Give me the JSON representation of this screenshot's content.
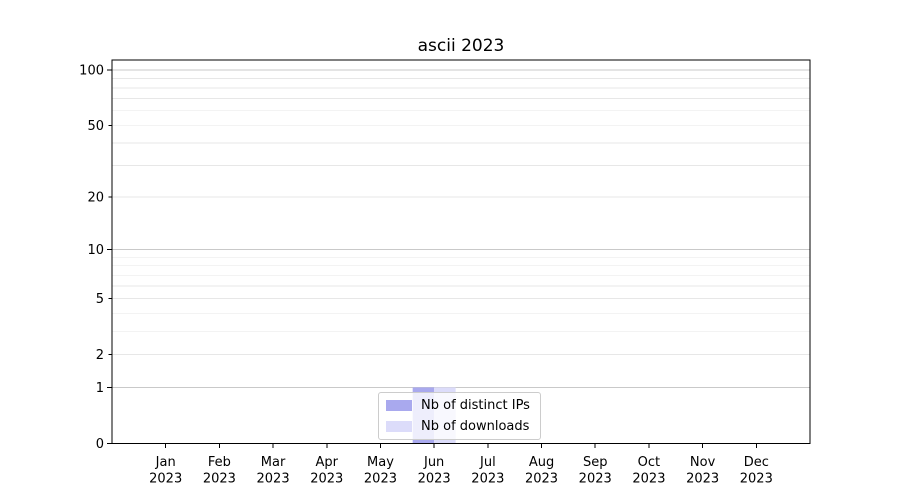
{
  "title": "ascii 2023",
  "chart_data": {
    "type": "bar",
    "categories": [
      "Jan\n2023",
      "Feb\n2023",
      "Mar\n2023",
      "Apr\n2023",
      "May\n2023",
      "Jun\n2023",
      "Jul\n2023",
      "Aug\n2023",
      "Sep\n2023",
      "Oct\n2023",
      "Nov\n2023",
      "Dec\n2023"
    ],
    "series": [
      {
        "name": "Nb of distinct IPs",
        "color": "#a9a9ee",
        "values": [
          0,
          0,
          0,
          0,
          0,
          1,
          0,
          0,
          0,
          0,
          0,
          0
        ]
      },
      {
        "name": "Nb of downloads",
        "color": "#dcdcfa",
        "values": [
          0,
          0,
          0,
          0,
          0,
          1,
          0,
          0,
          0,
          0,
          0,
          0
        ]
      }
    ],
    "title": "ascii 2023",
    "xlabel": "",
    "ylabel": "",
    "yscale": "log1p",
    "ylim": [
      0,
      113
    ],
    "ytick_labels": [
      "0",
      "1",
      "2",
      "5",
      "10",
      "20",
      "50",
      "100"
    ],
    "ytick_values": [
      0,
      1,
      2,
      5,
      10,
      20,
      50,
      100
    ],
    "ytick_major_values": [
      1,
      10,
      100
    ],
    "ytick_minor_unlabeled": [
      3,
      4,
      6,
      7,
      8,
      9,
      30,
      40,
      60,
      70,
      80,
      90
    ],
    "grid": true,
    "legend_position": "lower center"
  },
  "colors": {
    "grid_major": "#c9c9c9",
    "grid_minor": "#e7e7e7",
    "axis": "#000000",
    "background": "#ffffff"
  }
}
